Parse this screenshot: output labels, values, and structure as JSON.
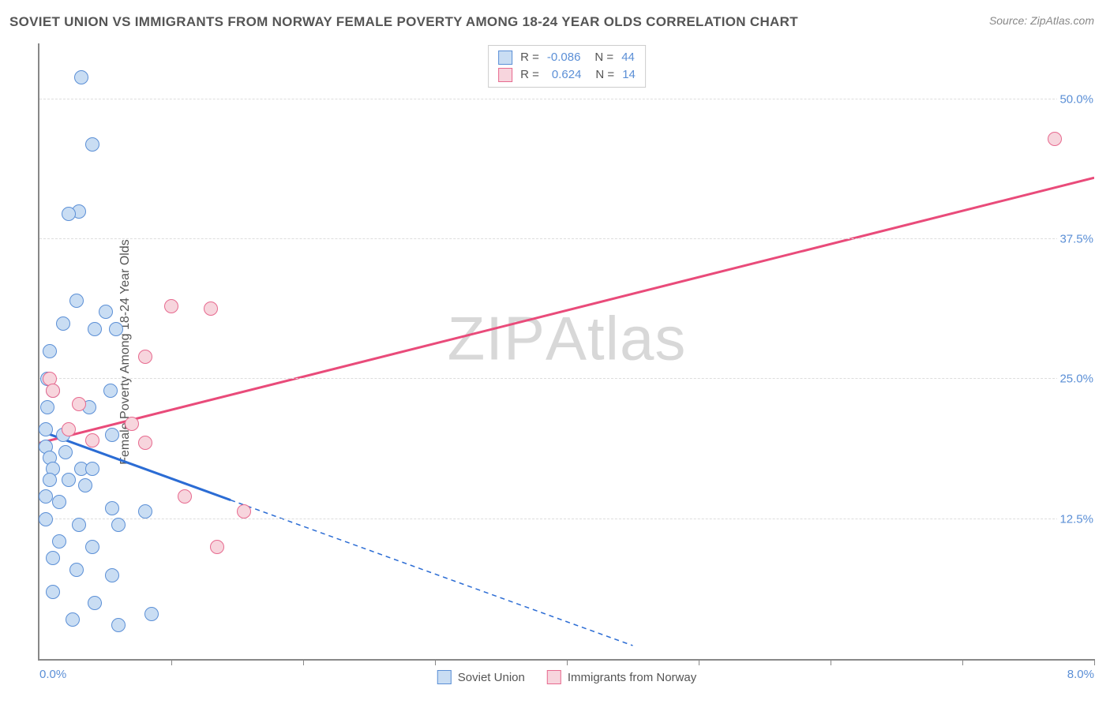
{
  "title": "SOVIET UNION VS IMMIGRANTS FROM NORWAY FEMALE POVERTY AMONG 18-24 YEAR OLDS CORRELATION CHART",
  "source": "Source: ZipAtlas.com",
  "watermark_prefix": "ZIP",
  "watermark_suffix": "Atlas",
  "y_axis_title": "Female Poverty Among 18-24 Year Olds",
  "chart": {
    "type": "scatter",
    "background_color": "#ffffff",
    "grid_color": "#dddddd",
    "axis_color": "#888888",
    "xlim": [
      0,
      8
    ],
    "ylim": [
      0,
      55
    ],
    "y_gridlines": [
      12.5,
      25,
      37.5,
      50
    ],
    "y_gridline_labels": [
      "12.5%",
      "25.0%",
      "37.5%",
      "50.0%"
    ],
    "x_ticks": [
      0,
      1,
      2,
      3,
      4,
      5,
      6,
      7,
      8
    ],
    "x_label_min": "0.0%",
    "x_label_max": "8.0%",
    "marker_radius": 9,
    "marker_stroke_width": 1.5,
    "line_width": 3,
    "dash_pattern": "6,5",
    "series": [
      {
        "name": "Soviet Union",
        "fill_color": "#c9ddf3",
        "stroke_color": "#5b8fd6",
        "line_color": "#2b6cd4",
        "R": "-0.086",
        "N": "44",
        "trend_solid": {
          "x1": 0.0,
          "y1": 20.4,
          "x2": 1.45,
          "y2": 14.2
        },
        "trend_dashed": {
          "x1": 1.45,
          "y1": 14.2,
          "x2": 4.5,
          "y2": 1.2
        },
        "points": [
          {
            "x": 0.32,
            "y": 52.0
          },
          {
            "x": 0.4,
            "y": 46.0
          },
          {
            "x": 0.3,
            "y": 40.0
          },
          {
            "x": 0.22,
            "y": 39.8
          },
          {
            "x": 0.28,
            "y": 32.0
          },
          {
            "x": 0.5,
            "y": 31.0
          },
          {
            "x": 0.18,
            "y": 30.0
          },
          {
            "x": 0.42,
            "y": 29.5
          },
          {
            "x": 0.58,
            "y": 29.5
          },
          {
            "x": 0.08,
            "y": 27.5
          },
          {
            "x": 0.06,
            "y": 25.0
          },
          {
            "x": 0.1,
            "y": 24.0
          },
          {
            "x": 0.54,
            "y": 24.0
          },
          {
            "x": 0.06,
            "y": 22.5
          },
          {
            "x": 0.38,
            "y": 22.5
          },
          {
            "x": 0.05,
            "y": 20.5
          },
          {
            "x": 0.18,
            "y": 20.0
          },
          {
            "x": 0.55,
            "y": 20.0
          },
          {
            "x": 0.05,
            "y": 19.0
          },
          {
            "x": 0.2,
            "y": 18.5
          },
          {
            "x": 0.08,
            "y": 18.0
          },
          {
            "x": 0.1,
            "y": 17.0
          },
          {
            "x": 0.32,
            "y": 17.0
          },
          {
            "x": 0.4,
            "y": 17.0
          },
          {
            "x": 0.08,
            "y": 16.0
          },
          {
            "x": 0.22,
            "y": 16.0
          },
          {
            "x": 0.35,
            "y": 15.5
          },
          {
            "x": 0.05,
            "y": 14.5
          },
          {
            "x": 0.15,
            "y": 14.0
          },
          {
            "x": 0.55,
            "y": 13.5
          },
          {
            "x": 0.8,
            "y": 13.2
          },
          {
            "x": 0.05,
            "y": 12.5
          },
          {
            "x": 0.3,
            "y": 12.0
          },
          {
            "x": 0.6,
            "y": 12.0
          },
          {
            "x": 0.15,
            "y": 10.5
          },
          {
            "x": 0.4,
            "y": 10.0
          },
          {
            "x": 0.1,
            "y": 9.0
          },
          {
            "x": 0.28,
            "y": 8.0
          },
          {
            "x": 0.55,
            "y": 7.5
          },
          {
            "x": 0.1,
            "y": 6.0
          },
          {
            "x": 0.42,
            "y": 5.0
          },
          {
            "x": 0.85,
            "y": 4.0
          },
          {
            "x": 0.25,
            "y": 3.5
          },
          {
            "x": 0.6,
            "y": 3.0
          }
        ]
      },
      {
        "name": "Immigrants from Norway",
        "fill_color": "#f7d5dd",
        "stroke_color": "#e76a8f",
        "line_color": "#e94b7a",
        "R": "0.624",
        "N": "14",
        "trend_solid": {
          "x1": 0.0,
          "y1": 19.3,
          "x2": 8.0,
          "y2": 43.0
        },
        "trend_dashed": null,
        "points": [
          {
            "x": 7.7,
            "y": 46.5
          },
          {
            "x": 1.0,
            "y": 31.5
          },
          {
            "x": 1.3,
            "y": 31.3
          },
          {
            "x": 0.8,
            "y": 27.0
          },
          {
            "x": 0.08,
            "y": 25.0
          },
          {
            "x": 0.3,
            "y": 22.8
          },
          {
            "x": 0.7,
            "y": 21.0
          },
          {
            "x": 0.22,
            "y": 20.5
          },
          {
            "x": 0.4,
            "y": 19.5
          },
          {
            "x": 0.8,
            "y": 19.3
          },
          {
            "x": 1.1,
            "y": 14.5
          },
          {
            "x": 1.55,
            "y": 13.2
          },
          {
            "x": 1.35,
            "y": 10.0
          },
          {
            "x": 0.1,
            "y": 24.0
          }
        ]
      }
    ],
    "legend_top_labels": {
      "R": "R =",
      "N": "N ="
    },
    "title_fontsize": 17,
    "title_color": "#555555",
    "label_fontsize": 15,
    "axis_label_color": "#5b8fd6"
  }
}
